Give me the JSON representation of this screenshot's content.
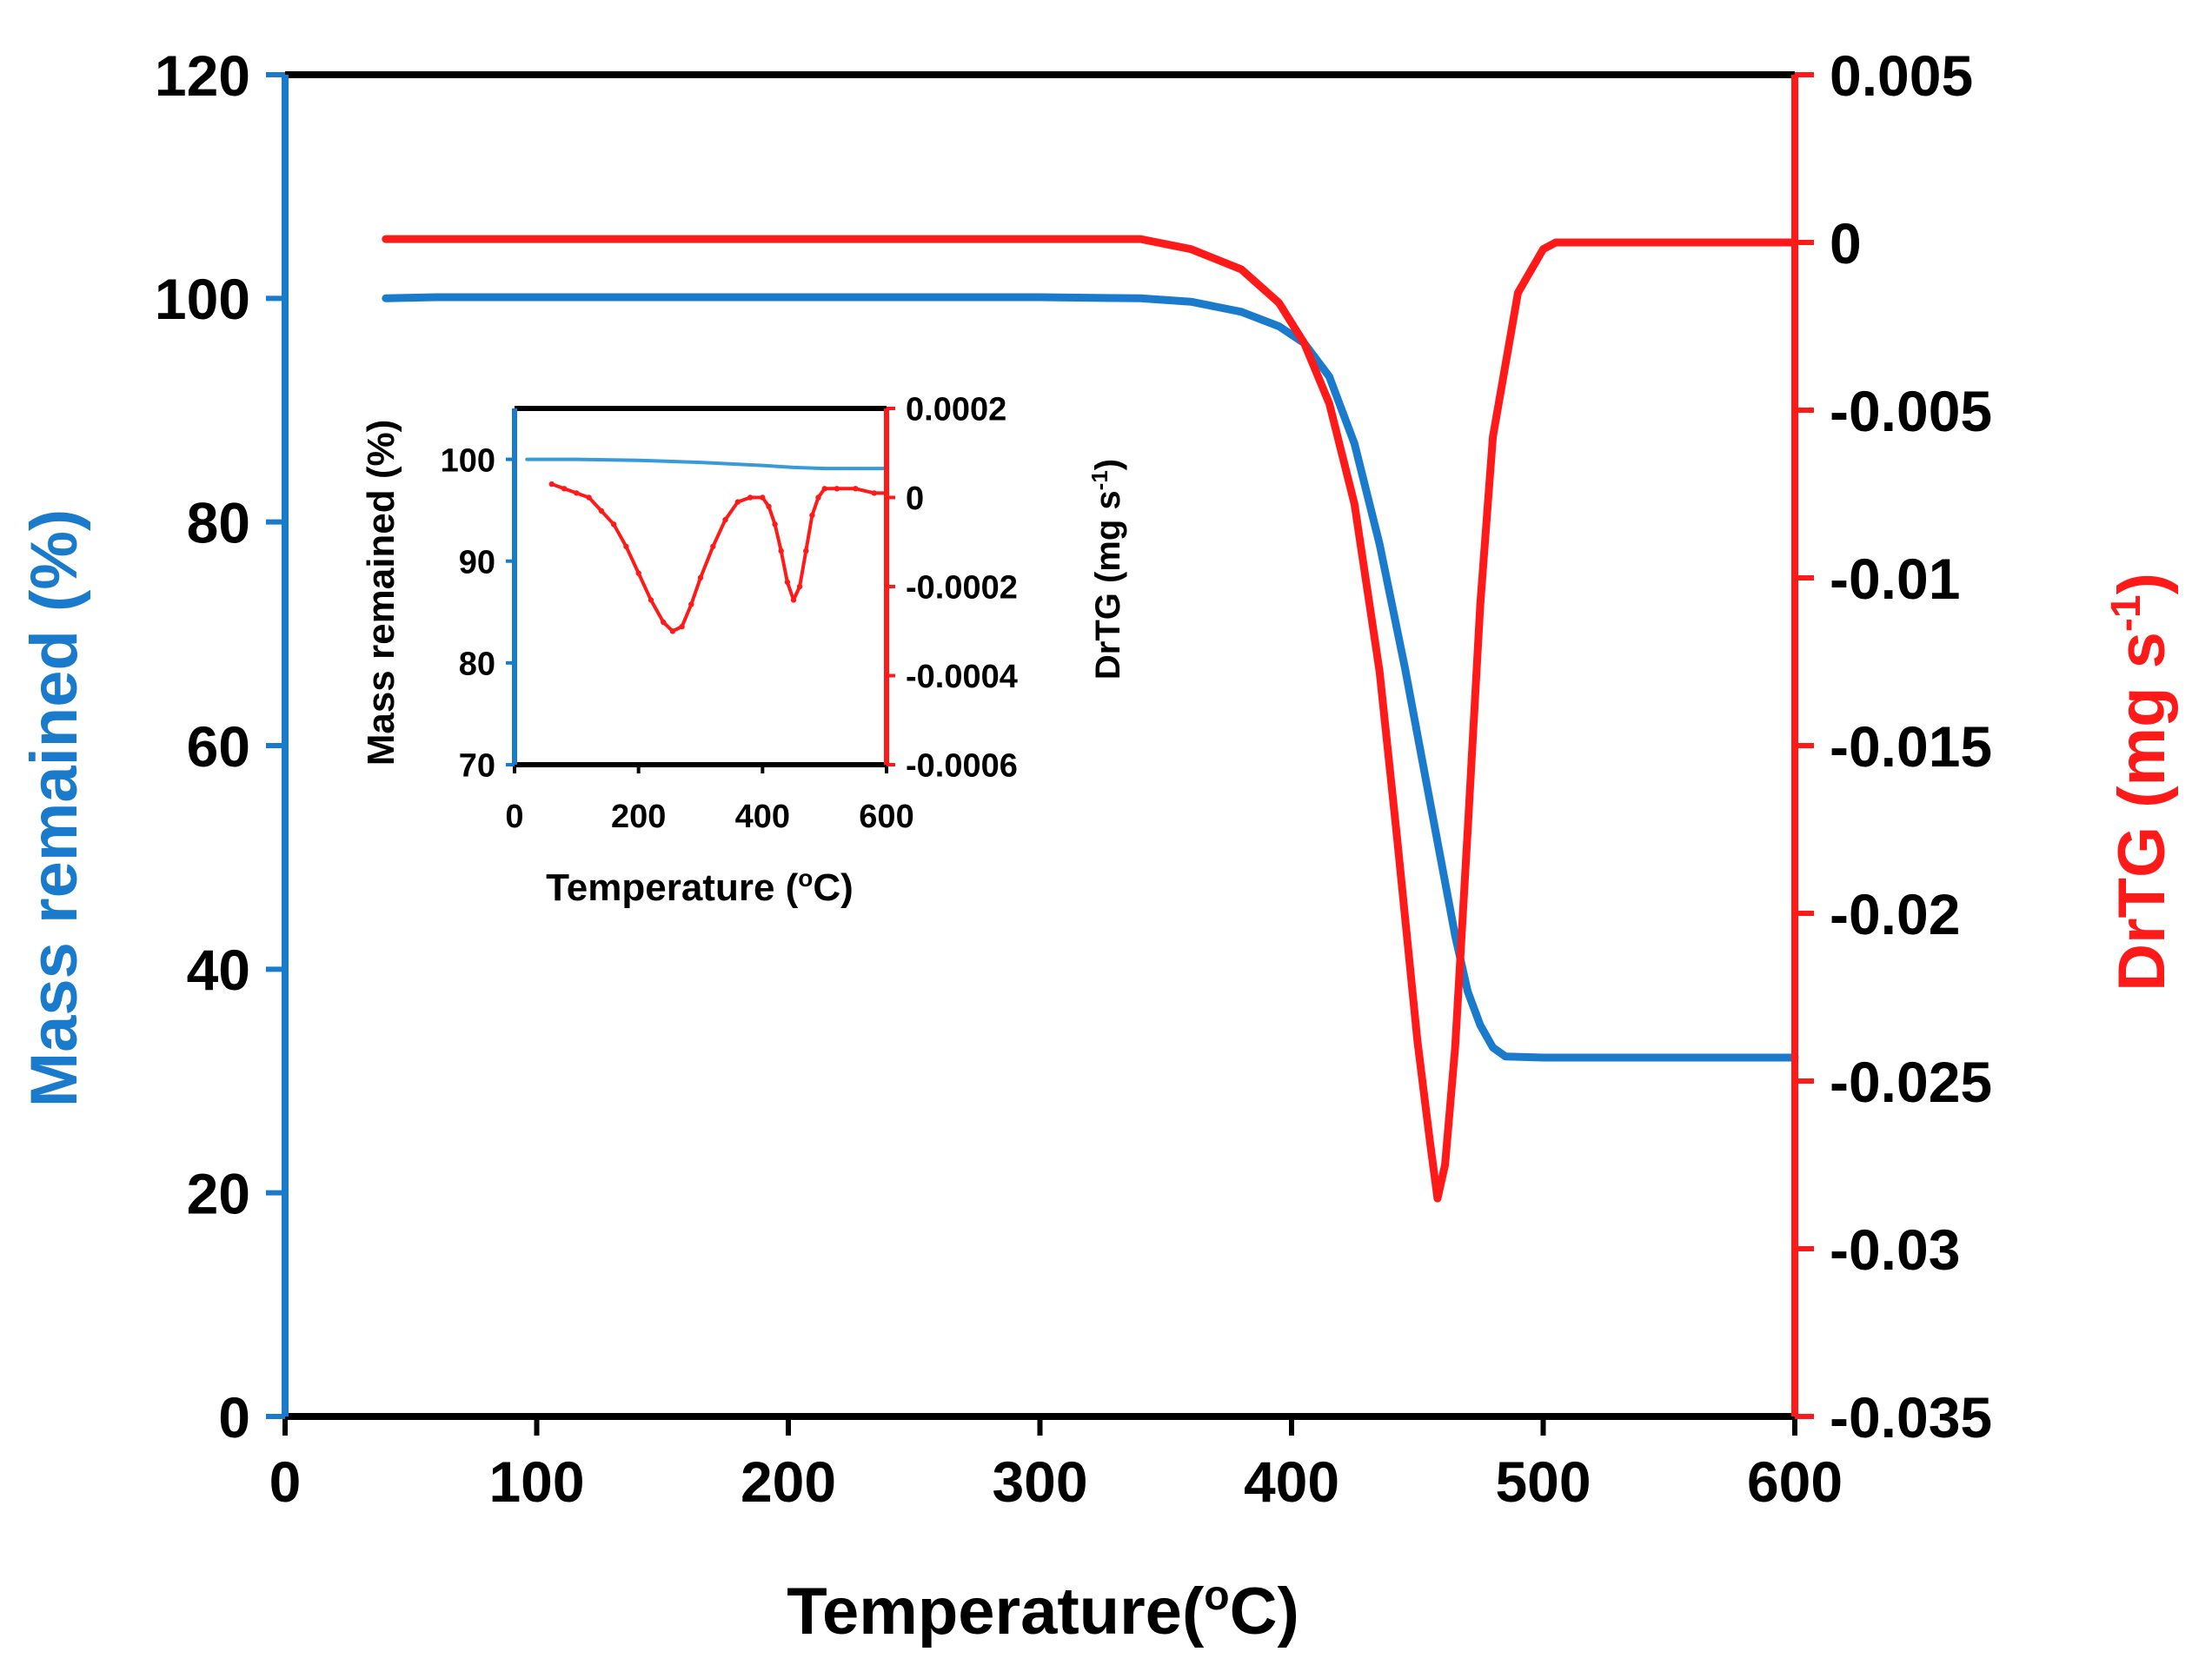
{
  "colors": {
    "mass": "#1a7acc",
    "drtg": "#ff1a1a",
    "mass_inset": "#3a9ad9",
    "axis": "#000000",
    "background": "#ffffff"
  },
  "chart_data": [
    {
      "id": "main",
      "type": "line",
      "xlabel": "Temperature(",
      "xlabel_sup": "o",
      "xlabel_suffix": "C)",
      "y_left_label": "Mass remained (%)",
      "y_right_label": "DrTG (mg s",
      "y_right_label_sup": "-1",
      "y_right_label_suffix": ")",
      "xlim": [
        0,
        600
      ],
      "ylim_left": [
        0,
        120
      ],
      "ylim_right": [
        -0.035,
        0.005
      ],
      "x_ticks": [
        0,
        100,
        200,
        300,
        400,
        500,
        600
      ],
      "x_tick_labels": [
        "0",
        "100",
        "200",
        "300",
        "400",
        "500",
        "600"
      ],
      "y_left_ticks": [
        0,
        20,
        40,
        60,
        80,
        100,
        120
      ],
      "y_left_tick_labels": [
        "0",
        "20",
        "40",
        "60",
        "80",
        "100",
        "120"
      ],
      "y_right_ticks": [
        -0.035,
        -0.03,
        -0.025,
        -0.02,
        -0.015,
        -0.01,
        -0.005,
        0,
        0.005
      ],
      "y_right_tick_labels": [
        "-0.035",
        "-0.03",
        "-0.025",
        "-0.02",
        "-0.015",
        "-0.01",
        "-0.005",
        "0",
        "0.005"
      ],
      "series": [
        {
          "name": "Mass remained",
          "axis": "left",
          "x": [
            40,
            60,
            100,
            200,
            300,
            340,
            360,
            380,
            395,
            405,
            415,
            425,
            435,
            445,
            455,
            465,
            470,
            475,
            480,
            485,
            500,
            550,
            600
          ],
          "y": [
            100,
            100.1,
            100.1,
            100.1,
            100.1,
            100,
            99.7,
            98.8,
            97.5,
            96,
            93,
            87,
            78,
            67,
            55,
            43,
            38,
            35,
            33,
            32.2,
            32.1,
            32.1,
            32.1
          ]
        },
        {
          "name": "DrTG",
          "axis": "right",
          "x": [
            40,
            100,
            200,
            300,
            340,
            360,
            380,
            395,
            405,
            415,
            425,
            435,
            442,
            450,
            455,
            458,
            461,
            465,
            470,
            475,
            480,
            490,
            500,
            505,
            510,
            550,
            600
          ],
          "y": [
            0.0001,
            0.0001,
            0.0001,
            0.0001,
            0.0001,
            -0.0002,
            -0.0008,
            -0.0018,
            -0.003,
            -0.0048,
            -0.0078,
            -0.0128,
            -0.0178,
            -0.0238,
            -0.0268,
            -0.0285,
            -0.0275,
            -0.024,
            -0.0175,
            -0.0108,
            -0.0058,
            -0.0015,
            -0.0002,
            0,
            0,
            0,
            0
          ]
        }
      ]
    },
    {
      "id": "inset",
      "type": "line",
      "xlabel": "Temperature (",
      "xlabel_sup": "o",
      "xlabel_suffix": "C)",
      "y_left_label": "Mass remained (%)",
      "y_right_label": "DrTG (mg s",
      "y_right_label_sup": "-1",
      "y_right_label_suffix": ")",
      "xlim": [
        0,
        600
      ],
      "ylim_left": [
        70,
        105
      ],
      "ylim_right": [
        -0.0006,
        0.0002
      ],
      "x_ticks": [
        0,
        200,
        400,
        600
      ],
      "x_tick_labels": [
        "0",
        "200",
        "400",
        "600"
      ],
      "y_left_ticks": [
        70,
        80,
        90,
        100
      ],
      "y_left_tick_labels": [
        "70",
        "80",
        "90",
        "100"
      ],
      "y_right_ticks": [
        -0.0006,
        -0.0004,
        -0.0002,
        0,
        0.0002
      ],
      "y_right_tick_labels": [
        "-0.0006",
        "-0.0004",
        "-0.0002",
        "0",
        "0.0002"
      ],
      "series": [
        {
          "name": "Mass remained (inset)",
          "axis": "left",
          "x": [
            20,
            100,
            200,
            300,
            400,
            450,
            500,
            600
          ],
          "y": [
            100,
            100,
            99.9,
            99.7,
            99.4,
            99.2,
            99.1,
            99.1
          ]
        },
        {
          "name": "DrTG (inset)",
          "axis": "right",
          "x": [
            60,
            80,
            100,
            120,
            140,
            160,
            180,
            200,
            220,
            240,
            255,
            270,
            285,
            300,
            320,
            340,
            360,
            380,
            400,
            410,
            420,
            430,
            440,
            450,
            460,
            470,
            480,
            490,
            500,
            520,
            550,
            580,
            600
          ],
          "y": [
            3e-05,
            2e-05,
            1e-05,
            0,
            -3e-05,
            -6e-05,
            -0.00011,
            -0.00017,
            -0.00023,
            -0.00028,
            -0.0003,
            -0.00029,
            -0.00024,
            -0.00018,
            -0.00011,
            -5e-05,
            -1e-05,
            0,
            0,
            -2e-05,
            -6e-05,
            -0.00012,
            -0.00019,
            -0.00023,
            -0.0002,
            -0.00012,
            -4e-05,
            0,
            2e-05,
            2e-05,
            2e-05,
            1e-05,
            1e-05
          ]
        }
      ]
    }
  ]
}
